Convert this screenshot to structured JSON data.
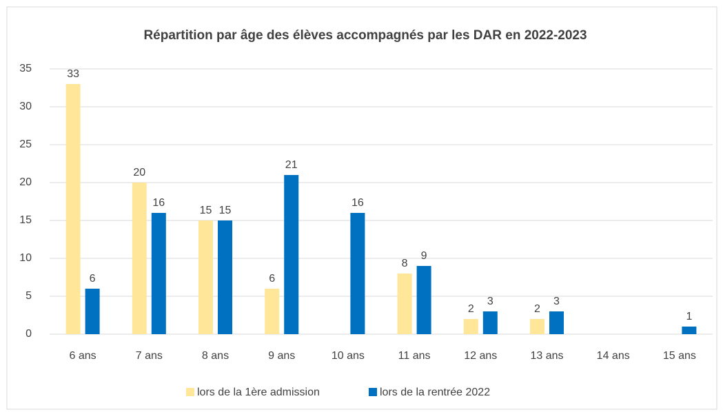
{
  "chart_data": {
    "type": "bar",
    "title": "Répartition par âge des élèves accompagnés par les DAR en 2022-2023",
    "categories": [
      "6 ans",
      "7 ans",
      "8 ans",
      "9 ans",
      "10 ans",
      "11 ans",
      "12 ans",
      "13 ans",
      "14 ans",
      "15 ans"
    ],
    "series": [
      {
        "name": "lors de la 1ère admission",
        "color": "#ffe699",
        "values": [
          33,
          20,
          15,
          6,
          null,
          8,
          2,
          2,
          null,
          null
        ]
      },
      {
        "name": "lors de la rentrée 2022",
        "color": "#0070c0",
        "values": [
          6,
          16,
          15,
          21,
          16,
          9,
          3,
          3,
          null,
          1
        ]
      }
    ],
    "ylim": [
      0,
      35
    ],
    "yticks": [
      0,
      5,
      10,
      15,
      20,
      25,
      30,
      35
    ],
    "grid": true,
    "legend": "bottom"
  }
}
